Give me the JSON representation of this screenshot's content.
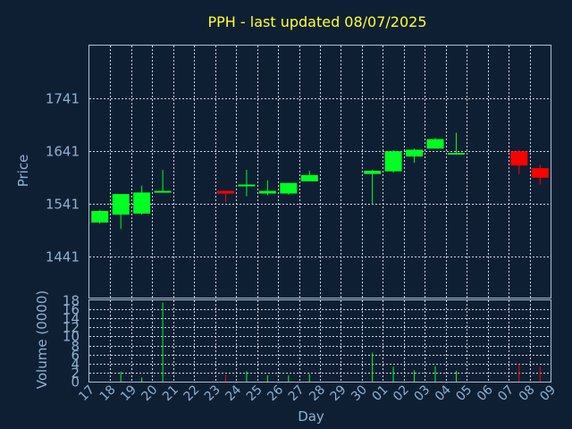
{
  "colors": {
    "background": "#0f1f33",
    "frame": "#a8bfd8",
    "grid": "#c8d6e6",
    "up": "#00ff22",
    "down": "#ff0000",
    "title": "#ffff33",
    "axis_text": "#8fb0d3"
  },
  "chart_data": {
    "type": "candlestick",
    "title": "PPH - last updated 08/07/2025",
    "xlabel": "Day",
    "ylabel": "Price",
    "volume_label": "Volume (0000)",
    "grid": true,
    "price_ylim": [
      1364,
      1841
    ],
    "price_ticks": [
      1441,
      1541,
      1641,
      1741
    ],
    "volume_ylim": [
      0,
      18
    ],
    "volume_ticks": [
      0,
      2,
      4,
      6,
      8,
      10,
      12,
      14,
      16,
      18
    ],
    "x_ticks": [
      "17",
      "18",
      "19",
      "20",
      "21",
      "22",
      "23",
      "24",
      "25",
      "26",
      "27",
      "28",
      "29",
      "30",
      "01",
      "02",
      "03",
      "04",
      "05",
      "06",
      "07",
      "08",
      "09"
    ],
    "candles": [
      {
        "slot": 0,
        "open": 1506,
        "close": 1528,
        "high": 1530,
        "low": 1504,
        "volume": 0
      },
      {
        "slot": 1,
        "open": 1521,
        "close": 1560,
        "high": 1560,
        "low": 1494,
        "volume": 2.2
      },
      {
        "slot": 2,
        "open": 1523,
        "close": 1563,
        "high": 1576,
        "low": 1521,
        "volume": 0.9
      },
      {
        "slot": 3,
        "open": 1564,
        "close": 1566,
        "high": 1606,
        "low": 1564,
        "volume": 17.5
      },
      {
        "slot": 6,
        "open": 1566,
        "close": 1561,
        "high": 1566,
        "low": 1545,
        "volume": 1.5
      },
      {
        "slot": 7,
        "open": 1576,
        "close": 1578,
        "high": 1606,
        "low": 1556,
        "volume": 2.3
      },
      {
        "slot": 8,
        "open": 1561,
        "close": 1566,
        "high": 1586,
        "low": 1558,
        "volume": 1.4
      },
      {
        "slot": 9,
        "open": 1561,
        "close": 1581,
        "high": 1581,
        "low": 1559,
        "volume": 1.4
      },
      {
        "slot": 10,
        "open": 1584,
        "close": 1596,
        "high": 1604,
        "low": 1584,
        "volume": 1.7
      },
      {
        "slot": 13,
        "open": 1598,
        "close": 1604,
        "high": 1606,
        "low": 1541,
        "volume": 6.4
      },
      {
        "slot": 14,
        "open": 1603,
        "close": 1641,
        "high": 1643,
        "low": 1601,
        "volume": 3.3
      },
      {
        "slot": 15,
        "open": 1631,
        "close": 1644,
        "high": 1646,
        "low": 1619,
        "volume": 2.5
      },
      {
        "slot": 16,
        "open": 1646,
        "close": 1664,
        "high": 1666,
        "low": 1646,
        "volume": 3.4
      },
      {
        "slot": 17,
        "open": 1636,
        "close": 1638,
        "high": 1676,
        "low": 1636,
        "volume": 2.4
      },
      {
        "slot": 20,
        "open": 1641,
        "close": 1614,
        "high": 1643,
        "low": 1598,
        "volume": 3.9
      },
      {
        "slot": 21,
        "open": 1609,
        "close": 1591,
        "high": 1616,
        "low": 1578,
        "volume": 3.3
      }
    ]
  }
}
